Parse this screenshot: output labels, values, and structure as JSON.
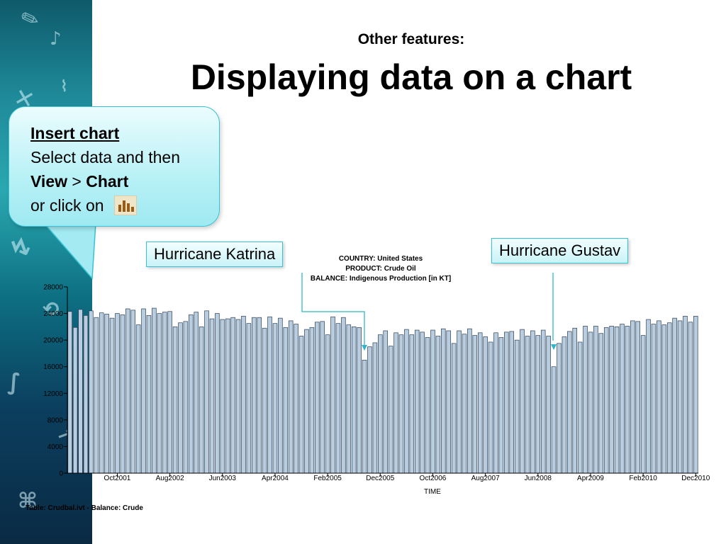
{
  "slide": {
    "subtitle": "Other features:",
    "title": "Displaying data on a chart"
  },
  "callout": {
    "heading": "Insert chart",
    "line1": "Select data and then",
    "view_word": "View",
    "separator": " > ",
    "chart_word": "Chart",
    "line3": "or click on",
    "icon": "bar-chart-icon"
  },
  "annotations": {
    "katrina": "Hurricane Katrina",
    "gustav": "Hurricane Gustav"
  },
  "chart_meta": {
    "country": "COUNTRY: United States",
    "product": "PRODUCT: Crude Oil",
    "balance": "BALANCE: Indigenous Production [in KT]"
  },
  "table_caption": "Table: Crudbal.ivt - Balance: Crude",
  "colors": {
    "bar_fill": "#b9cde0",
    "bar_stroke": "#2e3f54",
    "callout_border": "#36c3d4"
  },
  "chart_data": {
    "type": "bar",
    "xlabel": "TIME",
    "ylabel": "",
    "ylim": [
      0,
      28000
    ],
    "yticks": [
      0,
      4000,
      8000,
      12000,
      16000,
      20000,
      24000,
      28000
    ],
    "xtick_labels": [
      "Oct2001",
      "Aug2002",
      "Jun2003",
      "Apr2004",
      "Feb2005",
      "Dec2005",
      "Oct2006",
      "Aug2007",
      "Jun2008",
      "Apr2009",
      "Feb2010",
      "Dec2010"
    ],
    "xtick_indices": [
      9,
      19,
      29,
      39,
      49,
      59,
      69,
      79,
      89,
      99,
      109,
      119
    ],
    "categories": [
      "Jan2001",
      "Feb2001",
      "Mar2001",
      "Apr2001",
      "May2001",
      "Jun2001",
      "Jul2001",
      "Aug2001",
      "Sep2001",
      "Oct2001",
      "Nov2001",
      "Dec2001",
      "Jan2002",
      "Feb2002",
      "Mar2002",
      "Apr2002",
      "May2002",
      "Jun2002",
      "Jul2002",
      "Aug2002",
      "Sep2002",
      "Oct2002",
      "Nov2002",
      "Dec2002",
      "Jan2003",
      "Feb2003",
      "Mar2003",
      "Apr2003",
      "May2003",
      "Jun2003",
      "Jul2003",
      "Aug2003",
      "Sep2003",
      "Oct2003",
      "Nov2003",
      "Dec2003",
      "Jan2004",
      "Feb2004",
      "Mar2004",
      "Apr2004",
      "May2004",
      "Jun2004",
      "Jul2004",
      "Aug2004",
      "Sep2004",
      "Oct2004",
      "Nov2004",
      "Dec2004",
      "Jan2005",
      "Feb2005",
      "Mar2005",
      "Apr2005",
      "May2005",
      "Jun2005",
      "Jul2005",
      "Aug2005",
      "Sep2005",
      "Oct2005",
      "Nov2005",
      "Dec2005",
      "Jan2006",
      "Feb2006",
      "Mar2006",
      "Apr2006",
      "May2006",
      "Jun2006",
      "Jul2006",
      "Aug2006",
      "Sep2006",
      "Oct2006",
      "Nov2006",
      "Dec2006",
      "Jan2007",
      "Feb2007",
      "Mar2007",
      "Apr2007",
      "May2007",
      "Jun2007",
      "Jul2007",
      "Aug2007",
      "Sep2007",
      "Oct2007",
      "Nov2007",
      "Dec2007",
      "Jan2008",
      "Feb2008",
      "Mar2008",
      "Apr2008",
      "May2008",
      "Jun2008",
      "Jul2008",
      "Aug2008",
      "Sep2008",
      "Oct2008",
      "Nov2008",
      "Dec2008",
      "Jan2009",
      "Feb2009",
      "Mar2009",
      "Apr2009",
      "May2009",
      "Jun2009",
      "Jul2009",
      "Aug2009",
      "Sep2009",
      "Oct2009",
      "Nov2009",
      "Dec2009",
      "Jan2010",
      "Feb2010",
      "Mar2010",
      "Apr2010",
      "May2010",
      "Jun2010",
      "Jul2010",
      "Aug2010",
      "Sep2010",
      "Oct2010",
      "Nov2010",
      "Dec2010"
    ],
    "values": [
      24300,
      21900,
      24600,
      23700,
      24400,
      23400,
      24100,
      23900,
      23300,
      24000,
      23800,
      24700,
      24500,
      22300,
      24700,
      23700,
      24800,
      24000,
      24200,
      24300,
      22000,
      22600,
      22800,
      23800,
      24200,
      22000,
      24400,
      23200,
      24000,
      23100,
      23200,
      23400,
      23100,
      23600,
      22500,
      23400,
      23400,
      21800,
      23500,
      22500,
      23300,
      21900,
      22900,
      22400,
      20600,
      21600,
      21900,
      22700,
      22800,
      20800,
      23500,
      22500,
      23400,
      22300,
      22000,
      21900,
      17000,
      19000,
      19600,
      20800,
      21400,
      19100,
      21100,
      20800,
      21600,
      20800,
      21500,
      21200,
      20400,
      21500,
      20600,
      21700,
      21400,
      19500,
      21400,
      20900,
      21700,
      20700,
      21100,
      20500,
      19700,
      21100,
      20400,
      21200,
      21300,
      20000,
      21600,
      20600,
      21400,
      20700,
      21500,
      20600,
      16000,
      19500,
      20500,
      21300,
      21800,
      19700,
      22100,
      21200,
      22100,
      21000,
      21900,
      22100,
      22000,
      22400,
      22100,
      22900,
      22800,
      20700,
      23100,
      22400,
      22900,
      22300,
      22600,
      23300,
      22900,
      23600,
      22700,
      23600
    ]
  }
}
